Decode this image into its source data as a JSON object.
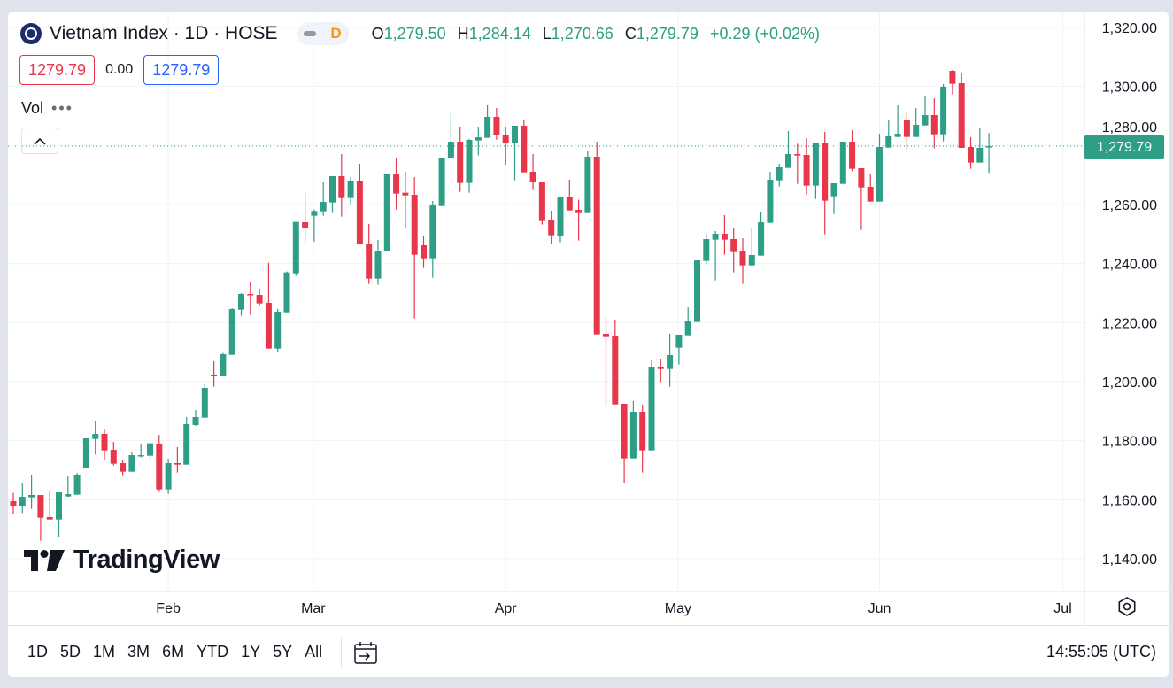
{
  "header": {
    "symbol_title": "Vietnam Index · 1D · HOSE",
    "interval_badge": "D",
    "open_label": "O",
    "open": "1,279.50",
    "high_label": "H",
    "high": "1,284.14",
    "low_label": "L",
    "low": "1,270.66",
    "close_label": "C",
    "close": "1,279.79",
    "change": "+0.29 (+0.02%)",
    "bid": "1279.79",
    "spread": "0.00",
    "ask": "1279.79",
    "volume_label": "Vol",
    "volume_menu": "•••"
  },
  "watermark": "TradingView",
  "last_price_label": "1,279.79",
  "bottom_bar": {
    "ranges": [
      "1D",
      "5D",
      "1M",
      "3M",
      "6M",
      "YTD",
      "1Y",
      "5Y",
      "All"
    ],
    "clock": "14:55:05 (UTC)"
  },
  "colors": {
    "up": "#2e9e86",
    "down": "#e8374a",
    "grid": "#f0f3fa",
    "last_price_line": "#2e9e86"
  },
  "chart_data": {
    "type": "candlestick",
    "title": "Vietnam Index · 1D · HOSE",
    "ylim": [
      1130,
      1325
    ],
    "y_ticks": [
      1140,
      1160,
      1180,
      1200,
      1220,
      1240,
      1260,
      1280,
      1300,
      1320
    ],
    "y_tick_labels": [
      "1,140.00",
      "1,160.00",
      "1,180.00",
      "1,200.00",
      "1,220.00",
      "1,240.00",
      "1,260.00",
      "1,280.00",
      "1,300.00",
      "1,320.00"
    ],
    "x_ticks": [
      {
        "label": "Feb",
        "index": 17
      },
      {
        "label": "Mar",
        "index": 32.9
      },
      {
        "label": "Apr",
        "index": 54
      },
      {
        "label": "May",
        "index": 72.9
      },
      {
        "label": "Jun",
        "index": 95
      },
      {
        "label": "Jul",
        "index": 115.1
      }
    ],
    "last_price": 1279.79,
    "ohlc": [
      [
        1159.5,
        1162.3,
        1155.1,
        1157.8
      ],
      [
        1157.8,
        1165.5,
        1155.5,
        1161.0
      ],
      [
        1160.8,
        1168.5,
        1156.9,
        1161.6
      ],
      [
        1161.6,
        1161.6,
        1146.1,
        1153.9
      ],
      [
        1154.1,
        1163.1,
        1153.3,
        1153.3
      ],
      [
        1153.3,
        1162.5,
        1147.3,
        1162.5
      ],
      [
        1161.1,
        1167.9,
        1160.9,
        1161.9
      ],
      [
        1161.7,
        1169.1,
        1161.7,
        1168.5
      ],
      [
        1170.7,
        1180.8,
        1170.7,
        1180.8
      ],
      [
        1180.6,
        1186.5,
        1175.3,
        1182.3
      ],
      [
        1182.3,
        1184.1,
        1173.3,
        1176.7
      ],
      [
        1176.9,
        1179.6,
        1171.6,
        1172.2
      ],
      [
        1172.4,
        1173.3,
        1168.0,
        1169.5
      ],
      [
        1169.5,
        1176.3,
        1169.5,
        1175.1
      ],
      [
        1174.9,
        1178.7,
        1174.3,
        1175.1
      ],
      [
        1174.9,
        1179.3,
        1173.7,
        1179.1
      ],
      [
        1179.0,
        1182.0,
        1162.6,
        1163.5
      ],
      [
        1163.5,
        1173.9,
        1162.0,
        1172.4
      ],
      [
        1172.4,
        1177.8,
        1169.2,
        1171.9
      ],
      [
        1171.9,
        1188.0,
        1171.9,
        1185.6
      ],
      [
        1185.3,
        1190.4,
        1185.0,
        1188.0
      ],
      [
        1187.8,
        1199.1,
        1187.8,
        1197.9
      ],
      [
        1202.3,
        1206.9,
        1198.3,
        1201.8
      ],
      [
        1201.8,
        1209.7,
        1201.8,
        1209.3
      ],
      [
        1209.1,
        1224.9,
        1209.1,
        1224.6
      ],
      [
        1224.4,
        1230.0,
        1222.3,
        1229.7
      ],
      [
        1229.7,
        1233.6,
        1222.6,
        1229.4
      ],
      [
        1229.4,
        1231.6,
        1225.6,
        1226.5
      ],
      [
        1226.7,
        1240.3,
        1211.2,
        1211.2
      ],
      [
        1211.2,
        1224.6,
        1210.0,
        1223.7
      ],
      [
        1223.5,
        1237.3,
        1223.5,
        1237.0
      ],
      [
        1236.7,
        1254.1,
        1235.8,
        1254.1
      ],
      [
        1254.0,
        1264.0,
        1247.2,
        1252.0
      ],
      [
        1256.2,
        1258.3,
        1247.5,
        1257.8
      ],
      [
        1257.7,
        1267.8,
        1256.2,
        1260.9
      ],
      [
        1260.7,
        1269.6,
        1257.4,
        1269.6
      ],
      [
        1269.6,
        1277.1,
        1255.9,
        1262.2
      ],
      [
        1262.2,
        1269.3,
        1259.8,
        1268.1
      ],
      [
        1268.1,
        1273.8,
        1246.6,
        1246.6
      ],
      [
        1246.8,
        1253.4,
        1233.1,
        1234.9
      ],
      [
        1234.9,
        1248.0,
        1232.8,
        1244.4
      ],
      [
        1244.2,
        1270.2,
        1244.2,
        1270.2
      ],
      [
        1270.2,
        1275.9,
        1258.3,
        1263.7
      ],
      [
        1264.0,
        1271.1,
        1252.0,
        1263.1
      ],
      [
        1263.3,
        1269.3,
        1221.4,
        1243.0
      ],
      [
        1246.2,
        1249.2,
        1238.5,
        1241.8
      ],
      [
        1241.8,
        1261.2,
        1235.2,
        1259.7
      ],
      [
        1259.5,
        1275.9,
        1259.5,
        1275.9
      ],
      [
        1275.7,
        1290.9,
        1275.7,
        1281.3
      ],
      [
        1281.3,
        1286.4,
        1264.3,
        1267.3
      ],
      [
        1267.3,
        1282.2,
        1264.0,
        1281.9
      ],
      [
        1281.7,
        1286.4,
        1276.6,
        1282.8
      ],
      [
        1282.6,
        1293.6,
        1282.6,
        1289.7
      ],
      [
        1289.7,
        1292.7,
        1282.0,
        1283.5
      ],
      [
        1283.7,
        1286.4,
        1273.5,
        1280.8
      ],
      [
        1280.8,
        1286.7,
        1268.2,
        1286.7
      ],
      [
        1286.7,
        1288.5,
        1270.9,
        1270.9
      ],
      [
        1271.1,
        1277.1,
        1264.9,
        1267.6
      ],
      [
        1267.8,
        1267.8,
        1253.2,
        1254.4
      ],
      [
        1254.6,
        1257.9,
        1246.6,
        1249.6
      ],
      [
        1249.4,
        1262.4,
        1247.2,
        1262.4
      ],
      [
        1262.4,
        1268.4,
        1258.0,
        1258.0
      ],
      [
        1258.2,
        1261.6,
        1247.8,
        1257.4
      ],
      [
        1257.4,
        1278.0,
        1257.4,
        1276.2
      ],
      [
        1276.2,
        1281.3,
        1216.0,
        1216.0
      ],
      [
        1216.2,
        1221.9,
        1191.4,
        1215.1
      ],
      [
        1215.3,
        1221.0,
        1192.3,
        1192.3
      ],
      [
        1192.5,
        1192.5,
        1165.6,
        1174.0
      ],
      [
        1174.0,
        1193.4,
        1174.0,
        1189.8
      ],
      [
        1189.8,
        1192.2,
        1169.2,
        1176.7
      ],
      [
        1176.7,
        1207.2,
        1176.7,
        1205.1
      ],
      [
        1205.1,
        1207.8,
        1199.8,
        1204.3
      ],
      [
        1204.3,
        1216.2,
        1198.3,
        1209.0
      ],
      [
        1211.5,
        1215.9,
        1205.8,
        1215.9
      ],
      [
        1215.7,
        1225.2,
        1215.7,
        1220.4
      ],
      [
        1220.2,
        1241.1,
        1220.2,
        1241.1
      ],
      [
        1240.9,
        1250.1,
        1239.7,
        1248.3
      ],
      [
        1248.1,
        1251.0,
        1234.3,
        1250.1
      ],
      [
        1250.1,
        1256.4,
        1243.0,
        1248.1
      ],
      [
        1248.3,
        1251.9,
        1237.0,
        1243.9
      ],
      [
        1244.1,
        1248.6,
        1233.1,
        1239.4
      ],
      [
        1239.4,
        1251.9,
        1239.4,
        1242.9
      ],
      [
        1242.7,
        1257.6,
        1242.7,
        1254.0
      ],
      [
        1253.8,
        1271.1,
        1253.8,
        1268.4
      ],
      [
        1268.2,
        1273.8,
        1266.1,
        1272.6
      ],
      [
        1272.4,
        1284.9,
        1272.4,
        1277.1
      ],
      [
        1277.1,
        1280.6,
        1267.0,
        1276.6
      ],
      [
        1276.8,
        1282.5,
        1263.4,
        1266.4
      ],
      [
        1266.4,
        1280.7,
        1261.9,
        1280.7
      ],
      [
        1280.7,
        1284.6,
        1249.9,
        1261.3
      ],
      [
        1262.8,
        1267.2,
        1256.8,
        1267.2
      ],
      [
        1267.0,
        1281.3,
        1267.0,
        1281.3
      ],
      [
        1281.3,
        1285.2,
        1271.3,
        1272.1
      ],
      [
        1272.3,
        1272.3,
        1251.4,
        1265.8
      ],
      [
        1266.0,
        1270.5,
        1261.0,
        1261.0
      ],
      [
        1261.0,
        1284.0,
        1261.0,
        1279.5
      ],
      [
        1279.3,
        1288.8,
        1279.3,
        1283.1
      ],
      [
        1282.9,
        1293.6,
        1282.9,
        1284.0
      ],
      [
        1288.5,
        1291.5,
        1278.1,
        1282.9
      ],
      [
        1282.9,
        1292.7,
        1282.9,
        1287.0
      ],
      [
        1286.8,
        1296.9,
        1286.8,
        1290.3
      ],
      [
        1290.3,
        1296.0,
        1279.0,
        1283.8
      ],
      [
        1283.8,
        1300.8,
        1281.4,
        1299.9
      ],
      [
        1305.3,
        1305.6,
        1297.3,
        1300.9
      ],
      [
        1301.1,
        1304.7,
        1279.2,
        1279.2
      ],
      [
        1279.5,
        1282.8,
        1272.1,
        1274.2
      ],
      [
        1274.2,
        1286.1,
        1274.2,
        1279.2
      ],
      [
        1279.5,
        1284.14,
        1270.66,
        1279.79
      ]
    ]
  }
}
